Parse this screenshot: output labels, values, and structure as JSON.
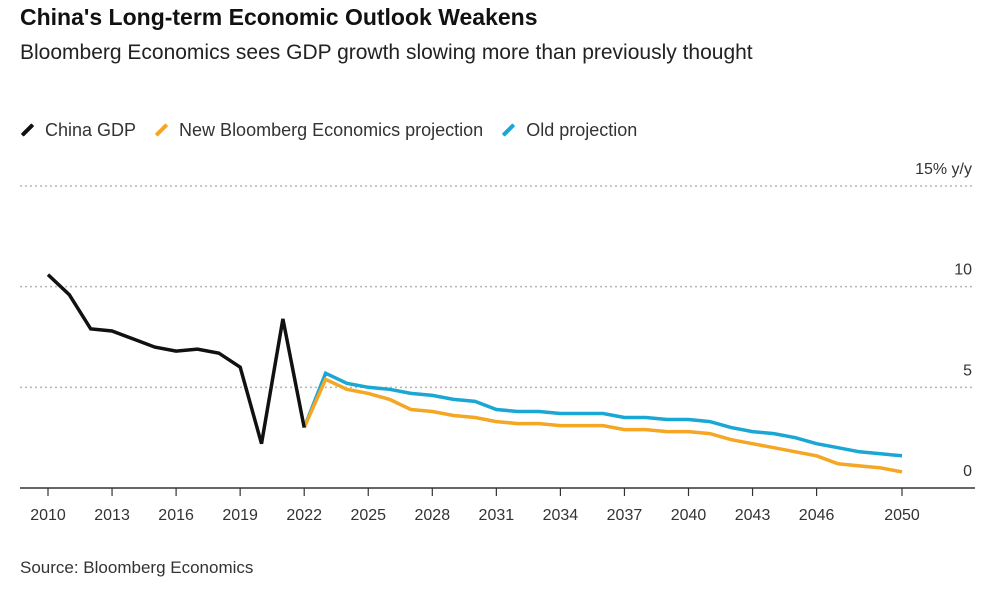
{
  "title": "China's Long-term Economic Outlook Weakens",
  "subtitle": "Bloomberg Economics sees GDP growth slowing more than previously thought",
  "source": "Source: Bloomberg Economics",
  "legend": [
    {
      "label": "China GDP",
      "color": "#111111"
    },
    {
      "label": "New Bloomberg Economics projection",
      "color": "#f5a623"
    },
    {
      "label": "Old projection",
      "color": "#1aa7d4"
    }
  ],
  "chart_data": {
    "type": "line",
    "title": "China's Long-term Economic Outlook Weakens",
    "subtitle": "Bloomberg Economics sees GDP growth slowing more than previously thought",
    "xlabel": "",
    "ylabel": "15% y/y",
    "xlim": [
      2010,
      2050
    ],
    "ylim": [
      0,
      15
    ],
    "x_ticks": [
      2010,
      2013,
      2016,
      2019,
      2022,
      2025,
      2028,
      2031,
      2034,
      2037,
      2040,
      2043,
      2046,
      2050
    ],
    "y_ticks": [
      {
        "value": 15,
        "label": "15% y/y"
      },
      {
        "value": 10,
        "label": "10"
      },
      {
        "value": 5,
        "label": "5"
      },
      {
        "value": 0,
        "label": "0"
      }
    ],
    "grid": "horizontal dotted",
    "legend_position": "top-left",
    "series": [
      {
        "name": "China GDP",
        "color": "#111111",
        "x": [
          2010,
          2011,
          2012,
          2013,
          2014,
          2015,
          2016,
          2017,
          2018,
          2019,
          2020,
          2021,
          2022
        ],
        "y": [
          10.6,
          9.6,
          7.9,
          7.8,
          7.4,
          7.0,
          6.8,
          6.9,
          6.7,
          6.0,
          2.2,
          8.4,
          3.0
        ]
      },
      {
        "name": "New Bloomberg Economics projection",
        "color": "#f5a623",
        "x": [
          2022,
          2023,
          2024,
          2025,
          2026,
          2027,
          2028,
          2029,
          2030,
          2031,
          2032,
          2033,
          2034,
          2035,
          2036,
          2037,
          2038,
          2039,
          2040,
          2041,
          2042,
          2043,
          2044,
          2045,
          2046,
          2047,
          2048,
          2049,
          2050
        ],
        "y": [
          3.0,
          5.4,
          4.9,
          4.7,
          4.4,
          3.9,
          3.8,
          3.6,
          3.5,
          3.3,
          3.2,
          3.2,
          3.1,
          3.1,
          3.1,
          2.9,
          2.9,
          2.8,
          2.8,
          2.7,
          2.4,
          2.2,
          2.0,
          1.8,
          1.6,
          1.2,
          1.1,
          1.0,
          0.8
        ]
      },
      {
        "name": "Old projection",
        "color": "#1aa7d4",
        "x": [
          2022,
          2023,
          2024,
          2025,
          2026,
          2027,
          2028,
          2029,
          2030,
          2031,
          2032,
          2033,
          2034,
          2035,
          2036,
          2037,
          2038,
          2039,
          2040,
          2041,
          2042,
          2043,
          2044,
          2045,
          2046,
          2047,
          2048,
          2049,
          2050
        ],
        "y": [
          3.0,
          5.7,
          5.2,
          5.0,
          4.9,
          4.7,
          4.6,
          4.4,
          4.3,
          3.9,
          3.8,
          3.8,
          3.7,
          3.7,
          3.7,
          3.5,
          3.5,
          3.4,
          3.4,
          3.3,
          3.0,
          2.8,
          2.7,
          2.5,
          2.2,
          2.0,
          1.8,
          1.7,
          1.6
        ]
      }
    ]
  }
}
